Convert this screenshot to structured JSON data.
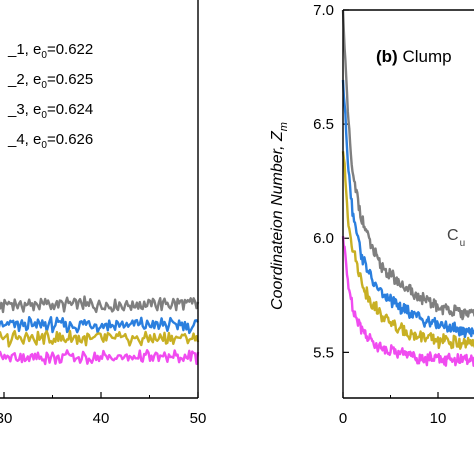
{
  "chart_data": [
    {
      "type": "line",
      "panel": "left (partially visible)",
      "title": "",
      "xlabel": "",
      "ylabel": "",
      "xlim": [
        20,
        50
      ],
      "ylim": [
        5.3,
        7.0
      ],
      "xticks": [
        {
          "value": 30,
          "label": "30"
        },
        {
          "value": 40,
          "label": "40"
        },
        {
          "value": 50,
          "label": "50"
        }
      ],
      "legend_position": "top-left",
      "legend_entries": [
        {
          "text": "_1, e",
          "sub": "0",
          "tail": "=0.622"
        },
        {
          "text": "_2, e",
          "sub": "0",
          "tail": "=0.625"
        },
        {
          "text": "_3, e",
          "sub": "0",
          "tail": "=0.624"
        },
        {
          "text": "_4, e",
          "sub": "0",
          "tail": "=0.626"
        }
      ],
      "series": [
        {
          "color": "#7f7f7f",
          "x": [
            20,
            30,
            40,
            50
          ],
          "values": [
            5.71,
            5.71,
            5.71,
            5.71
          ]
        },
        {
          "color": "#2b7fde",
          "x": [
            20,
            30,
            40,
            50
          ],
          "values": [
            5.62,
            5.62,
            5.62,
            5.62
          ]
        },
        {
          "color": "#c8b024",
          "x": [
            20,
            30,
            40,
            50
          ],
          "values": [
            5.56,
            5.56,
            5.56,
            5.56
          ]
        },
        {
          "color": "#f04cf0",
          "x": [
            20,
            30,
            40,
            50
          ],
          "values": [
            5.48,
            5.48,
            5.48,
            5.48
          ]
        }
      ]
    },
    {
      "type": "line",
      "panel": "right (partially visible)",
      "title": "(b) Clump",
      "title_bold_part": "(b)",
      "title_rest": " Clump",
      "xlabel": "",
      "ylabel_main": "Coordinateion Number, Z",
      "ylabel_sub": "m",
      "xlim": [
        0,
        15
      ],
      "ylim": [
        5.3,
        7.0
      ],
      "xticks": [
        {
          "value": 0,
          "label": "0"
        },
        {
          "value": 10,
          "label": "10"
        }
      ],
      "yticks": [
        {
          "value": 5.5,
          "label": "5.5"
        },
        {
          "value": 6.0,
          "label": "6.0"
        },
        {
          "value": 6.5,
          "label": "6.5"
        },
        {
          "value": 7.0,
          "label": "7.0"
        }
      ],
      "annotation": {
        "text": "C",
        "sub": "u"
      },
      "series": [
        {
          "color": "#7f7f7f",
          "x": [
            0,
            0.5,
            1,
            2,
            3,
            4,
            6,
            8,
            10,
            12,
            14,
            15
          ],
          "values": [
            7.0,
            6.55,
            6.28,
            6.08,
            5.96,
            5.88,
            5.8,
            5.74,
            5.7,
            5.68,
            5.66,
            5.7
          ]
        },
        {
          "color": "#2b7fde",
          "x": [
            0,
            0.5,
            1,
            2,
            3,
            4,
            6,
            8,
            10,
            12,
            14,
            15
          ],
          "values": [
            6.7,
            6.35,
            6.12,
            5.92,
            5.82,
            5.76,
            5.7,
            5.65,
            5.62,
            5.6,
            5.59,
            5.6
          ]
        },
        {
          "color": "#c8b024",
          "x": [
            0,
            0.5,
            1,
            2,
            3,
            4,
            6,
            8,
            10,
            12,
            14,
            15
          ],
          "values": [
            6.4,
            6.1,
            5.96,
            5.8,
            5.72,
            5.66,
            5.6,
            5.57,
            5.55,
            5.54,
            5.53,
            5.54
          ]
        },
        {
          "color": "#f04cf0",
          "x": [
            0,
            0.5,
            1,
            2,
            3,
            4,
            6,
            8,
            10,
            12,
            14,
            15
          ],
          "values": [
            6.0,
            5.82,
            5.7,
            5.6,
            5.55,
            5.52,
            5.5,
            5.48,
            5.47,
            5.47,
            5.46,
            5.47
          ]
        }
      ]
    }
  ]
}
